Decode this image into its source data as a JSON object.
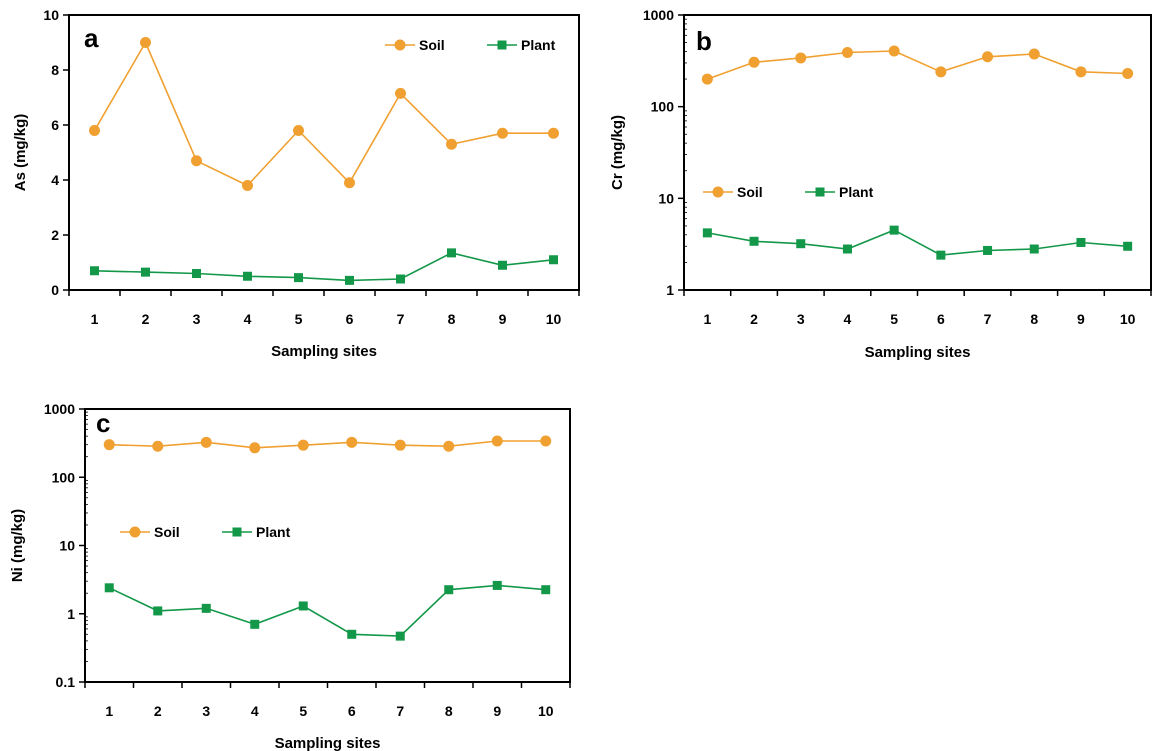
{
  "colors": {
    "soil": "#F0A030",
    "plant": "#139849"
  },
  "chart_data": [
    {
      "type": "line",
      "panel": "a",
      "ylabel": "As (mg/kg)",
      "xlabel": "Sampling sites",
      "yscale": "linear",
      "ylim": [
        0,
        10
      ],
      "y_ticks": [
        "0",
        "2",
        "4",
        "6",
        "8",
        "10"
      ],
      "categories": [
        "1",
        "2",
        "3",
        "4",
        "5",
        "6",
        "7",
        "8",
        "9",
        "10"
      ],
      "legend_position": "top-right",
      "series": [
        {
          "name": "Soil",
          "marker": "circle",
          "values": [
            5.8,
            9.0,
            4.7,
            3.8,
            5.8,
            3.9,
            7.15,
            5.3,
            5.7,
            5.7
          ]
        },
        {
          "name": "Plant",
          "marker": "square",
          "values": [
            0.7,
            0.65,
            0.6,
            0.5,
            0.45,
            0.35,
            0.4,
            1.35,
            0.9,
            1.1
          ]
        }
      ]
    },
    {
      "type": "line",
      "panel": "b",
      "ylabel": "Cr (mg/kg)",
      "xlabel": "Sampling sites",
      "yscale": "log",
      "ylim": [
        1,
        1000
      ],
      "y_ticks": [
        "1",
        "10",
        "100",
        "1000"
      ],
      "categories": [
        "1",
        "2",
        "3",
        "4",
        "5",
        "6",
        "7",
        "8",
        "9",
        "10"
      ],
      "legend_position": "middle-left",
      "series": [
        {
          "name": "Soil",
          "marker": "circle",
          "values": [
            200,
            305,
            340,
            390,
            405,
            240,
            350,
            375,
            240,
            230
          ]
        },
        {
          "name": "Plant",
          "marker": "square",
          "values": [
            4.2,
            3.4,
            3.2,
            2.8,
            4.5,
            2.4,
            2.7,
            2.8,
            3.3,
            3.0
          ]
        }
      ]
    },
    {
      "type": "line",
      "panel": "c",
      "ylabel": "Ni (mg/kg)",
      "xlabel": "Sampling sites",
      "yscale": "log",
      "ylim": [
        0.1,
        1000
      ],
      "y_ticks": [
        "0.1",
        "1",
        "10",
        "100",
        "1000"
      ],
      "categories": [
        "1",
        "2",
        "3",
        "4",
        "5",
        "6",
        "7",
        "8",
        "9",
        "10"
      ],
      "legend_position": "middle-left",
      "series": [
        {
          "name": "Soil",
          "marker": "circle",
          "values": [
            300,
            285,
            325,
            270,
            295,
            325,
            295,
            285,
            340,
            340
          ]
        },
        {
          "name": "Plant",
          "marker": "square",
          "values": [
            2.4,
            1.1,
            1.2,
            0.7,
            1.3,
            0.5,
            0.47,
            2.25,
            2.6,
            2.25
          ]
        }
      ]
    }
  ]
}
